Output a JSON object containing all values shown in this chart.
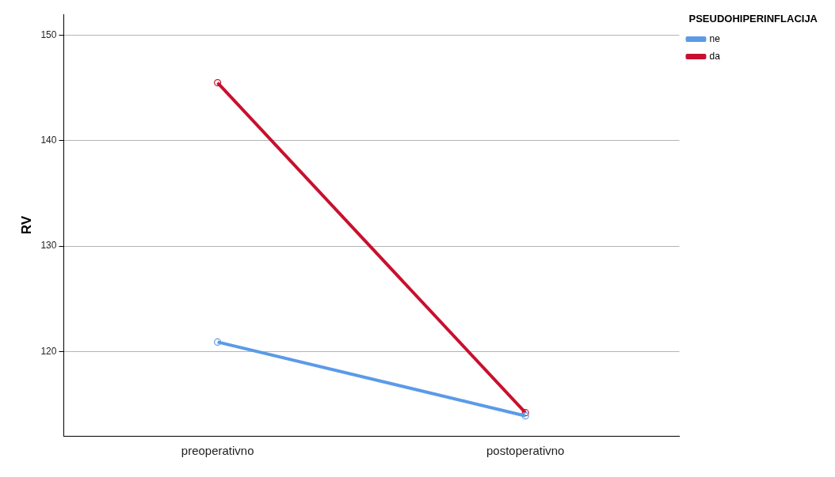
{
  "chart_data": {
    "type": "line",
    "ylabel": "RV",
    "legend_title": "PSEUDOHIPERINFLACIJA",
    "categories": [
      "preoperativno",
      "postoperativno"
    ],
    "series": [
      {
        "name": "ne",
        "color": "#5b9ae8",
        "values": [
          120.9,
          113.9
        ]
      },
      {
        "name": "da",
        "color": "#c8102e",
        "values": [
          145.5,
          114.2
        ]
      }
    ],
    "ylim": [
      112,
      152
    ],
    "yticks": [
      120,
      130,
      140,
      150
    ],
    "grid": "y",
    "legend": "top right",
    "marker": "circle",
    "line_style": "solid"
  }
}
